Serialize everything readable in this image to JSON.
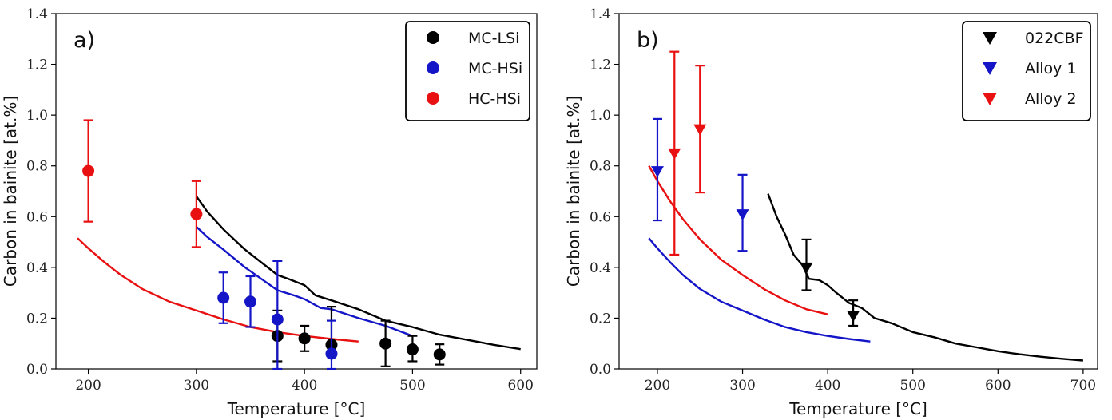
{
  "chart_data": [
    {
      "type": "scatter",
      "panel_label": "a)",
      "xlabel": "Temperature [°C]",
      "ylabel": "Carbon in bainite [at.%]",
      "xlim": [
        170,
        615
      ],
      "ylim": [
        0.0,
        1.4
      ],
      "xticks": [
        200,
        300,
        400,
        500,
        600
      ],
      "yticks": [
        0.0,
        0.2,
        0.4,
        0.6,
        0.8,
        1.0,
        1.2,
        1.4
      ],
      "xtick_labels": [
        "200",
        "300",
        "400",
        "500",
        "600"
      ],
      "ytick_labels": [
        "0.0",
        "0.2",
        "0.4",
        "0.6",
        "0.8",
        "1.0",
        "1.2",
        "1.4"
      ],
      "legend_position": "top-right",
      "grid": false,
      "series": [
        {
          "name": "MC-LSi",
          "color": "#000000",
          "marker": "circle",
          "points": [
            {
              "x": 375,
              "y": 0.13,
              "lo": 0.03,
              "hi": 0.23
            },
            {
              "x": 400,
              "y": 0.12,
              "lo": 0.07,
              "hi": 0.17
            },
            {
              "x": 425,
              "y": 0.095,
              "lo": 0.055,
              "hi": 0.245
            },
            {
              "x": 475,
              "y": 0.1,
              "lo": 0.01,
              "hi": 0.19
            },
            {
              "x": 500,
              "y": 0.077,
              "lo": 0.03,
              "hi": 0.13
            },
            {
              "x": 525,
              "y": 0.057,
              "lo": 0.017,
              "hi": 0.097
            }
          ],
          "curve": [
            [
              300,
              0.68
            ],
            [
              310,
              0.62
            ],
            [
              325,
              0.55
            ],
            [
              345,
              0.47
            ],
            [
              360,
              0.42
            ],
            [
              375,
              0.37
            ],
            [
              385,
              0.355
            ],
            [
              400,
              0.33
            ],
            [
              410,
              0.29
            ],
            [
              425,
              0.27
            ],
            [
              450,
              0.235
            ],
            [
              475,
              0.19
            ],
            [
              500,
              0.165
            ],
            [
              525,
              0.135
            ],
            [
              550,
              0.115
            ],
            [
              575,
              0.095
            ],
            [
              600,
              0.078
            ]
          ]
        },
        {
          "name": "MC-HSi",
          "color": "#1515c8",
          "marker": "circle",
          "points": [
            {
              "x": 325,
              "y": 0.28,
              "lo": 0.18,
              "hi": 0.38
            },
            {
              "x": 350,
              "y": 0.265,
              "lo": 0.165,
              "hi": 0.365
            },
            {
              "x": 375,
              "y": 0.195,
              "lo": 0.0,
              "hi": 0.425
            },
            {
              "x": 425,
              "y": 0.06,
              "lo": 0.0,
              "hi": 0.19
            }
          ],
          "curve": [
            [
              300,
              0.56
            ],
            [
              310,
              0.52
            ],
            [
              325,
              0.47
            ],
            [
              345,
              0.4
            ],
            [
              360,
              0.355
            ],
            [
              375,
              0.31
            ],
            [
              390,
              0.29
            ],
            [
              400,
              0.275
            ],
            [
              415,
              0.24
            ],
            [
              425,
              0.235
            ],
            [
              450,
              0.2
            ],
            [
              475,
              0.17
            ],
            [
              500,
              0.13
            ]
          ]
        },
        {
          "name": "HC-HSi",
          "color": "#e81010",
          "marker": "circle",
          "points": [
            {
              "x": 200,
              "y": 0.78,
              "lo": 0.58,
              "hi": 0.98
            },
            {
              "x": 300,
              "y": 0.61,
              "lo": 0.48,
              "hi": 0.74
            }
          ],
          "curve": [
            [
              190,
              0.515
            ],
            [
              200,
              0.475
            ],
            [
              215,
              0.42
            ],
            [
              230,
              0.37
            ],
            [
              250,
              0.315
            ],
            [
              275,
              0.265
            ],
            [
              300,
              0.23
            ],
            [
              325,
              0.195
            ],
            [
              350,
              0.165
            ],
            [
              375,
              0.145
            ],
            [
              400,
              0.13
            ],
            [
              425,
              0.118
            ],
            [
              450,
              0.108
            ]
          ]
        }
      ]
    },
    {
      "type": "scatter",
      "panel_label": "b)",
      "xlabel": "Temperature [°C]",
      "ylabel": "Carbon in bainite [at.%]",
      "xlim": [
        155,
        717
      ],
      "ylim": [
        0.0,
        1.4
      ],
      "xticks": [
        200,
        300,
        400,
        500,
        600,
        700
      ],
      "yticks": [
        0.0,
        0.2,
        0.4,
        0.6,
        0.8,
        1.0,
        1.2,
        1.4
      ],
      "xtick_labels": [
        "200",
        "300",
        "400",
        "500",
        "600",
        "700"
      ],
      "ytick_labels": [
        "0.0",
        "0.2",
        "0.4",
        "0.6",
        "0.8",
        "1.0",
        "1.2",
        "1.4"
      ],
      "legend_position": "top-right",
      "grid": false,
      "series": [
        {
          "name": "022CBF",
          "color": "#000000",
          "marker": "triangle-down",
          "points": [
            {
              "x": 375,
              "y": 0.4,
              "lo": 0.31,
              "hi": 0.51
            },
            {
              "x": 430,
              "y": 0.21,
              "lo": 0.17,
              "hi": 0.27
            }
          ],
          "curve": [
            [
              330,
              0.69
            ],
            [
              340,
              0.6
            ],
            [
              350,
              0.53
            ],
            [
              360,
              0.45
            ],
            [
              370,
              0.41
            ],
            [
              378,
              0.355
            ],
            [
              390,
              0.35
            ],
            [
              400,
              0.33
            ],
            [
              410,
              0.3
            ],
            [
              425,
              0.26
            ],
            [
              440,
              0.24
            ],
            [
              455,
              0.2
            ],
            [
              475,
              0.18
            ],
            [
              500,
              0.145
            ],
            [
              525,
              0.125
            ],
            [
              550,
              0.1
            ],
            [
              575,
              0.085
            ],
            [
              600,
              0.07
            ],
            [
              625,
              0.058
            ],
            [
              650,
              0.048
            ],
            [
              675,
              0.04
            ],
            [
              700,
              0.033
            ]
          ]
        },
        {
          "name": "Alloy 1",
          "color": "#1515c8",
          "marker": "triangle-down",
          "points": [
            {
              "x": 200,
              "y": 0.78,
              "lo": 0.585,
              "hi": 0.985
            },
            {
              "x": 300,
              "y": 0.61,
              "lo": 0.465,
              "hi": 0.765
            }
          ],
          "curve": [
            [
              190,
              0.515
            ],
            [
              200,
              0.475
            ],
            [
              215,
              0.42
            ],
            [
              230,
              0.37
            ],
            [
              250,
              0.315
            ],
            [
              275,
              0.265
            ],
            [
              300,
              0.23
            ],
            [
              325,
              0.195
            ],
            [
              350,
              0.165
            ],
            [
              375,
              0.145
            ],
            [
              400,
              0.13
            ],
            [
              425,
              0.118
            ],
            [
              450,
              0.108
            ]
          ]
        },
        {
          "name": "Alloy 2",
          "color": "#e81010",
          "marker": "triangle-down",
          "points": [
            {
              "x": 220,
              "y": 0.85,
              "lo": 0.45,
              "hi": 1.25
            },
            {
              "x": 250,
              "y": 0.945,
              "lo": 0.695,
              "hi": 1.195
            }
          ],
          "curve": [
            [
              190,
              0.8
            ],
            [
              200,
              0.74
            ],
            [
              215,
              0.66
            ],
            [
              230,
              0.59
            ],
            [
              250,
              0.51
            ],
            [
              275,
              0.43
            ],
            [
              300,
              0.37
            ],
            [
              325,
              0.315
            ],
            [
              350,
              0.27
            ],
            [
              375,
              0.235
            ],
            [
              400,
              0.215
            ]
          ]
        }
      ]
    }
  ]
}
